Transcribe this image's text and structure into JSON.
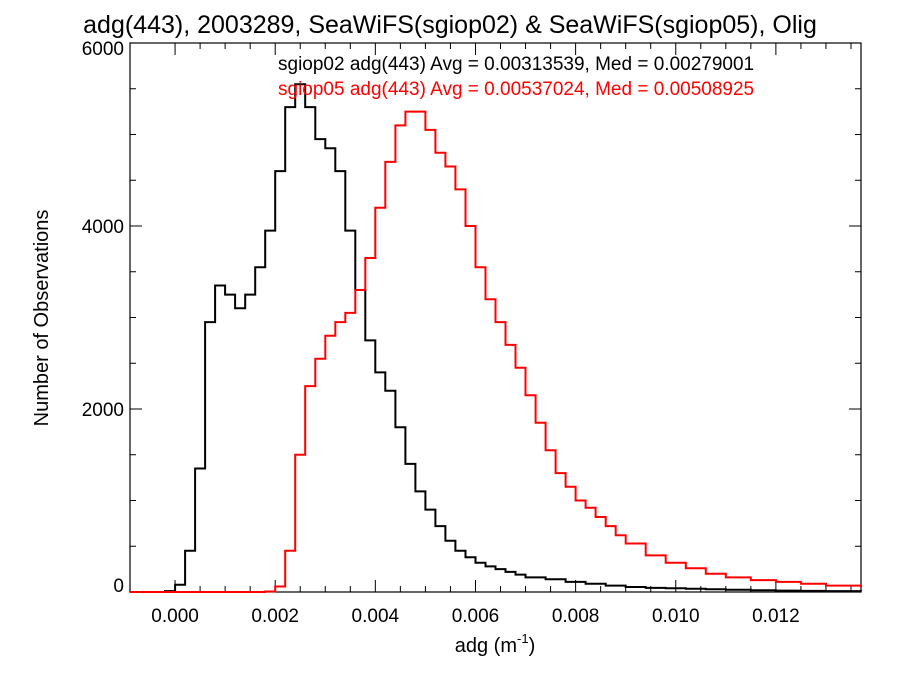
{
  "chart_data": {
    "type": "line",
    "title": "adg(443), 2003289, SeaWiFS(sgiop02) & SeaWiFS(sgiop05), Olig",
    "xlabel": "adg (m",
    "xlabel_sup": "-1",
    "xlabel_close": ")",
    "ylabel": "Number of Observations",
    "xlim": [
      -0.0009,
      0.0137
    ],
    "ylim": [
      0,
      6000
    ],
    "xticks": [
      0.0,
      0.002,
      0.004,
      0.006,
      0.008,
      0.01,
      0.012
    ],
    "xtick_labels": [
      "0.000",
      "0.002",
      "0.004",
      "0.006",
      "0.008",
      "0.010",
      "0.012"
    ],
    "yticks": [
      0,
      2000,
      4000,
      6000
    ],
    "ytick_labels": [
      "0",
      "2000",
      "4000",
      "6000"
    ],
    "grid": false,
    "legend_position": "top-right",
    "series": [
      {
        "name": "sgiop02",
        "legend": "sgiop02 adg(443) Avg = 0.00313539, Med = 0.00279001",
        "color": "#000000",
        "x": [
          -0.0009,
          -0.0002,
          0.0,
          0.0002,
          0.0004,
          0.0006,
          0.0008,
          0.001,
          0.0012,
          0.0014,
          0.0016,
          0.0018,
          0.002,
          0.0022,
          0.0024,
          0.0026,
          0.0028,
          0.003,
          0.0032,
          0.0034,
          0.0036,
          0.0038,
          0.004,
          0.0042,
          0.0044,
          0.0046,
          0.0048,
          0.005,
          0.0052,
          0.0054,
          0.0056,
          0.0058,
          0.006,
          0.0062,
          0.0064,
          0.0066,
          0.0068,
          0.007,
          0.0074,
          0.0078,
          0.0082,
          0.0086,
          0.009,
          0.0094,
          0.0098,
          0.0102,
          0.0106,
          0.011,
          0.0115,
          0.012,
          0.0125,
          0.013,
          0.0137
        ],
        "y": [
          0,
          10,
          80,
          450,
          1350,
          2950,
          3350,
          3250,
          3100,
          3250,
          3550,
          3950,
          4600,
          5300,
          5550,
          5300,
          4950,
          4850,
          4600,
          3950,
          3300,
          2750,
          2400,
          2200,
          1800,
          1400,
          1100,
          900,
          720,
          560,
          450,
          380,
          320,
          280,
          250,
          220,
          190,
          160,
          140,
          110,
          90,
          70,
          55,
          45,
          40,
          35,
          30,
          25,
          20,
          15,
          12,
          10,
          8
        ]
      },
      {
        "name": "sgiop05",
        "legend": "sgiop05 adg(443) Avg = 0.00537024, Med = 0.00508925",
        "color": "#ff0000",
        "x": [
          -0.0009,
          0.0018,
          0.002,
          0.0022,
          0.0024,
          0.0026,
          0.0028,
          0.003,
          0.0032,
          0.0034,
          0.0036,
          0.0038,
          0.004,
          0.0042,
          0.0044,
          0.0046,
          0.0048,
          0.005,
          0.0052,
          0.0054,
          0.0056,
          0.0058,
          0.006,
          0.0062,
          0.0064,
          0.0066,
          0.0068,
          0.007,
          0.0072,
          0.0074,
          0.0076,
          0.0078,
          0.008,
          0.0082,
          0.0084,
          0.0086,
          0.0088,
          0.009,
          0.0094,
          0.0098,
          0.0102,
          0.0106,
          0.011,
          0.0115,
          0.012,
          0.0125,
          0.013,
          0.0137
        ],
        "y": [
          0,
          5,
          60,
          450,
          1500,
          2250,
          2550,
          2800,
          2950,
          3050,
          3300,
          3650,
          4200,
          4700,
          5100,
          5250,
          5250,
          5050,
          4800,
          4650,
          4400,
          4000,
          3550,
          3200,
          2950,
          2700,
          2450,
          2150,
          1850,
          1550,
          1300,
          1150,
          1000,
          920,
          820,
          720,
          620,
          530,
          400,
          320,
          260,
          200,
          160,
          130,
          110,
          90,
          70,
          50
        ]
      }
    ]
  }
}
